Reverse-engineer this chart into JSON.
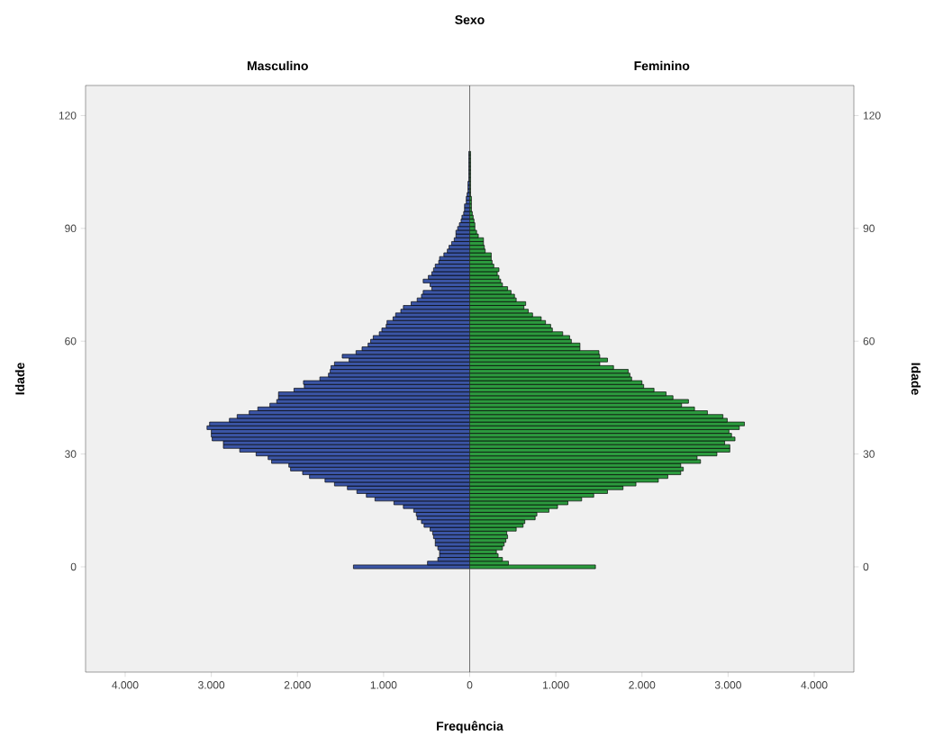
{
  "chart_data": [
    {
      "type": "bar",
      "orientation": "horizontal",
      "title": "Masculino",
      "annotations": [
        "Sexo"
      ],
      "xlabel": "Frequência",
      "ylabel": "Idade",
      "x": [
        0,
        1,
        2,
        3,
        4,
        5,
        6,
        7,
        8,
        9,
        10,
        11,
        12,
        13,
        14,
        15,
        16,
        17,
        18,
        19,
        20,
        21,
        22,
        23,
        24,
        25,
        26,
        27,
        28,
        29,
        30,
        31,
        32,
        33,
        34,
        35,
        36,
        37,
        38,
        39,
        40,
        41,
        42,
        43,
        44,
        45,
        46,
        47,
        48,
        49,
        50,
        51,
        52,
        53,
        54,
        55,
        56,
        57,
        58,
        59,
        60,
        61,
        62,
        63,
        64,
        65,
        66,
        67,
        68,
        69,
        70,
        71,
        72,
        73,
        74,
        75,
        76,
        77,
        78,
        79,
        80,
        81,
        82,
        83,
        84,
        85,
        86,
        87,
        88,
        89,
        90,
        91,
        92,
        93,
        94,
        95,
        96,
        97,
        98,
        99,
        100,
        101,
        102,
        103,
        104,
        105,
        106,
        107,
        108,
        109,
        110
      ],
      "values": [
        1350,
        490,
        370,
        350,
        350,
        370,
        400,
        400,
        420,
        430,
        460,
        530,
        560,
        610,
        620,
        650,
        770,
        880,
        1100,
        1200,
        1310,
        1420,
        1570,
        1680,
        1860,
        1940,
        2080,
        2100,
        2300,
        2340,
        2480,
        2670,
        2860,
        2860,
        2990,
        3000,
        3000,
        3050,
        3020,
        2790,
        2700,
        2560,
        2460,
        2320,
        2240,
        2220,
        2220,
        2040,
        1920,
        1930,
        1740,
        1640,
        1620,
        1610,
        1570,
        1400,
        1480,
        1320,
        1250,
        1180,
        1150,
        1120,
        1050,
        1020,
        970,
        960,
        890,
        860,
        800,
        770,
        680,
        610,
        560,
        540,
        440,
        460,
        540,
        480,
        440,
        420,
        400,
        360,
        350,
        300,
        260,
        240,
        210,
        180,
        160,
        160,
        140,
        120,
        100,
        90,
        70,
        60,
        60,
        40,
        40,
        30,
        20,
        20,
        20,
        10,
        10,
        10,
        10,
        10,
        10,
        10,
        10
      ],
      "color": "#3b55a5",
      "xlim": [
        4460,
        0
      ],
      "xticks": [
        {
          "value": 4000,
          "label": "4.000"
        },
        {
          "value": 3000,
          "label": "3.000"
        },
        {
          "value": 2000,
          "label": "2.000"
        },
        {
          "value": 1000,
          "label": "1.000"
        },
        0
      ],
      "ylim": [
        -28,
        128
      ],
      "yticks": [
        0,
        30,
        60,
        90,
        120
      ]
    },
    {
      "type": "bar",
      "orientation": "horizontal",
      "title": "Feminino",
      "ylabel": "Idade",
      "x": [
        0,
        1,
        2,
        3,
        4,
        5,
        6,
        7,
        8,
        9,
        10,
        11,
        12,
        13,
        14,
        15,
        16,
        17,
        18,
        19,
        20,
        21,
        22,
        23,
        24,
        25,
        26,
        27,
        28,
        29,
        30,
        31,
        32,
        33,
        34,
        35,
        36,
        37,
        38,
        39,
        40,
        41,
        42,
        43,
        44,
        45,
        46,
        47,
        48,
        49,
        50,
        51,
        52,
        53,
        54,
        55,
        56,
        57,
        58,
        59,
        60,
        61,
        62,
        63,
        64,
        65,
        66,
        67,
        68,
        69,
        70,
        71,
        72,
        73,
        74,
        75,
        76,
        77,
        78,
        79,
        80,
        81,
        82,
        83,
        84,
        85,
        86,
        87,
        88,
        89,
        90,
        91,
        92,
        93,
        94,
        95,
        96,
        97,
        98,
        99,
        100,
        101,
        102,
        103,
        104,
        105,
        106,
        107,
        108,
        109,
        110
      ],
      "values": [
        1460,
        450,
        380,
        330,
        310,
        380,
        400,
        420,
        440,
        430,
        540,
        620,
        640,
        760,
        780,
        920,
        1020,
        1140,
        1300,
        1440,
        1600,
        1780,
        1930,
        2190,
        2300,
        2450,
        2480,
        2450,
        2680,
        2640,
        2870,
        3020,
        3020,
        2960,
        3080,
        3040,
        3010,
        3130,
        3190,
        2990,
        2940,
        2760,
        2610,
        2460,
        2540,
        2360,
        2280,
        2140,
        2020,
        2000,
        1880,
        1860,
        1840,
        1670,
        1510,
        1600,
        1510,
        1500,
        1280,
        1280,
        1180,
        1160,
        1080,
        960,
        940,
        880,
        830,
        730,
        680,
        630,
        650,
        540,
        520,
        480,
        440,
        380,
        360,
        340,
        320,
        340,
        280,
        260,
        250,
        250,
        180,
        170,
        160,
        160,
        100,
        80,
        60,
        60,
        50,
        40,
        30,
        20,
        20,
        20,
        20,
        10,
        10,
        10,
        10,
        10,
        10,
        10,
        10,
        10,
        10,
        10,
        10
      ],
      "color": "#2c9a3e",
      "xlim": [
        0,
        4460
      ],
      "xticks": [
        {
          "value": 1000,
          "label": "1.000"
        },
        {
          "value": 2000,
          "label": "2.000"
        },
        {
          "value": 3000,
          "label": "3.000"
        },
        {
          "value": 4000,
          "label": "4.000"
        }
      ],
      "ylim": [
        -28,
        128
      ],
      "yticks": [
        0,
        30,
        60,
        90,
        120
      ]
    }
  ]
}
